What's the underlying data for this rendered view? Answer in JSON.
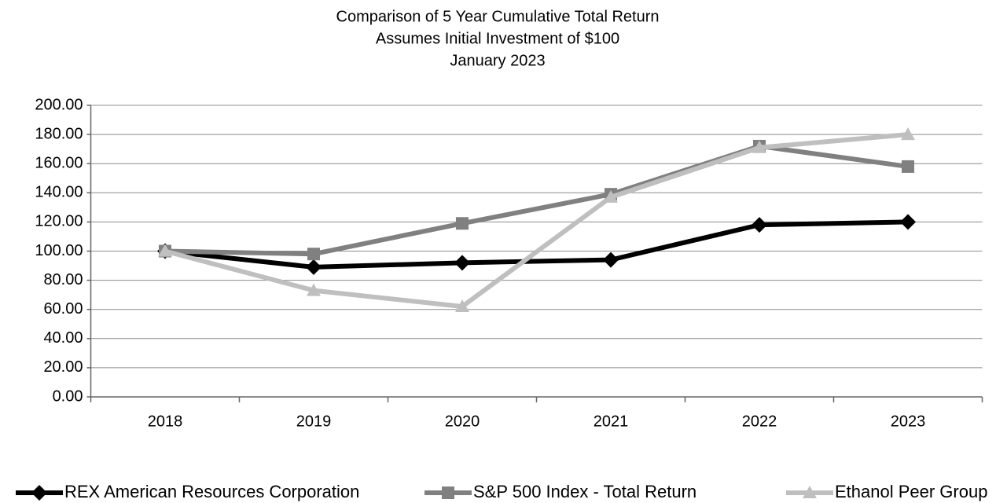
{
  "chart_data": {
    "type": "line",
    "title": "Comparison of 5 Year Cumulative Total Return",
    "subtitle": [
      "Assumes Initial Investment of $100",
      "January 2023"
    ],
    "categories": [
      "2018",
      "2019",
      "2020",
      "2021",
      "2022",
      "2023"
    ],
    "series": [
      {
        "name": "REX American Resources Corporation",
        "color": "#000000",
        "marker": "diamond",
        "values": [
          100,
          89,
          92,
          94,
          118,
          120
        ]
      },
      {
        "name": "S&P 500 Index - Total Return",
        "color": "#808080",
        "marker": "square",
        "values": [
          100,
          98,
          119,
          139,
          172,
          158
        ]
      },
      {
        "name": "Ethanol Peer Group",
        "color": "#bfbfbf",
        "marker": "triangle",
        "values": [
          100,
          73,
          62,
          137,
          171,
          180
        ]
      }
    ],
    "ylim": [
      0,
      200
    ],
    "yticks": [
      {
        "value": 0,
        "label": "0.00"
      },
      {
        "value": 20,
        "label": "20.00"
      },
      {
        "value": 40,
        "label": "40.00"
      },
      {
        "value": 60,
        "label": "60.00"
      },
      {
        "value": 80,
        "label": "80.00"
      },
      {
        "value": 100,
        "label": "100.00"
      },
      {
        "value": 120,
        "label": "120.00"
      },
      {
        "value": 140,
        "label": "140.00"
      },
      {
        "value": 160,
        "label": "160.00"
      },
      {
        "value": 180,
        "label": "180.00"
      },
      {
        "value": 200,
        "label": "200.00"
      }
    ],
    "grid": true,
    "legend": "bottom"
  }
}
